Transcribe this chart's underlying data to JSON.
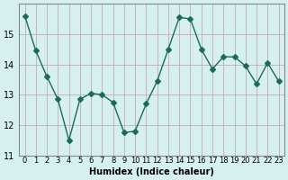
{
  "x": [
    0,
    1,
    2,
    3,
    4,
    5,
    6,
    7,
    8,
    9,
    10,
    11,
    12,
    13,
    14,
    15,
    16,
    17,
    18,
    19,
    20,
    21,
    22,
    23
  ],
  "y": [
    15.6,
    14.45,
    13.6,
    12.85,
    11.5,
    12.85,
    13.05,
    13.0,
    12.75,
    11.75,
    11.8,
    12.7,
    13.45,
    14.5,
    15.55,
    15.5,
    14.5,
    13.85,
    14.25,
    14.25,
    13.95,
    13.35,
    14.05,
    13.45
  ],
  "xlabel": "Humidex (Indice chaleur)",
  "ylim": [
    11,
    16
  ],
  "xlim": [
    -0.5,
    23.5
  ],
  "yticks": [
    11,
    12,
    13,
    14,
    15
  ],
  "xtick_labels": [
    "0",
    "1",
    "2",
    "3",
    "4",
    "5",
    "6",
    "7",
    "8",
    "9",
    "10",
    "11",
    "12",
    "13",
    "14",
    "15",
    "16",
    "17",
    "18",
    "19",
    "20",
    "21",
    "22",
    "23"
  ],
  "line_color": "#1a6b5a",
  "marker": "D",
  "marker_size": 3,
  "bg_color": "#d6f0f0",
  "grid_color": "#c0a0a0",
  "plot_bg": "#d6f0f0"
}
